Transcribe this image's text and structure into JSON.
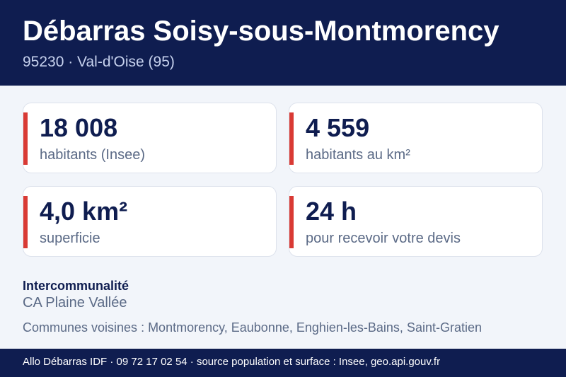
{
  "header": {
    "title": "Débarras Soisy-sous-Montmorency",
    "subtitle": "95230 · Val-d'Oise (95)"
  },
  "stats": [
    {
      "value": "18 008",
      "label": "habitants (Insee)"
    },
    {
      "value": "4 559",
      "label": "habitants au km²"
    },
    {
      "value": "4,0 km²",
      "label": "superficie"
    },
    {
      "value": "24 h",
      "label": "pour recevoir votre devis"
    }
  ],
  "intercommunalite": {
    "label": "Intercommunalité",
    "value": "CA Plaine Vallée"
  },
  "neighbors": "Communes voisines : Montmorency, Eaubonne, Enghien-les-Bains, Saint-Gratien",
  "footer": "Allo Débarras IDF · 09 72 17 02 54 · source population et surface : Insee, geo.api.gouv.fr"
}
